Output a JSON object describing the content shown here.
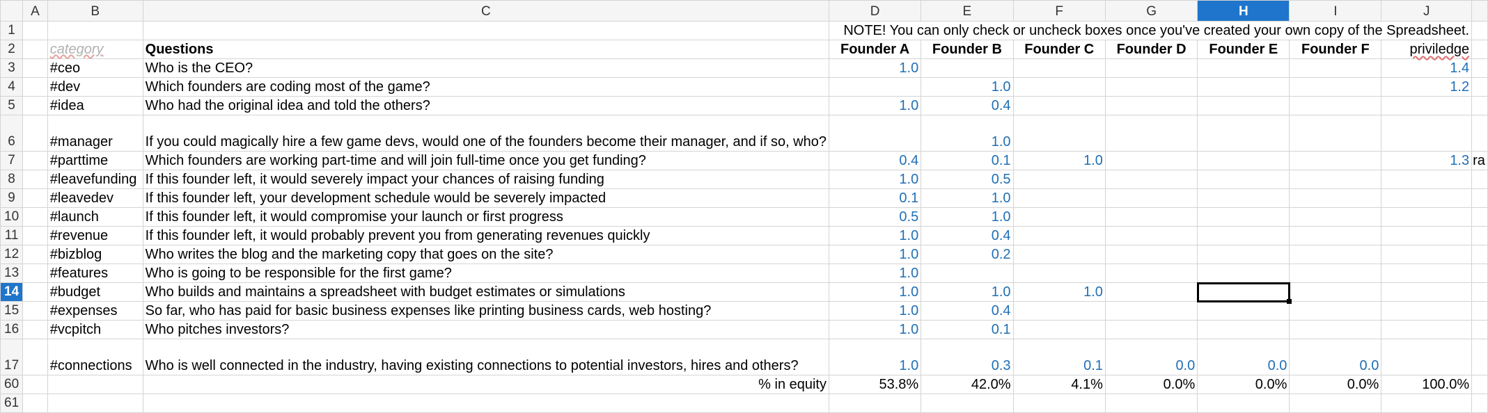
{
  "columns": [
    "",
    "A",
    "B",
    "C",
    "D",
    "E",
    "F",
    "G",
    "H",
    "I",
    "J",
    ""
  ],
  "selected_column": "H",
  "selected_row": "14",
  "note": "NOTE! You can only check or uncheck boxes once you've created your own copy of the Spreadsheet.",
  "header": {
    "category": "category",
    "questions": "Questions",
    "founders": [
      "Founder A",
      "Founder B",
      "Founder C",
      "Founder D",
      "Founder E",
      "Founder F"
    ],
    "priviledge": "priviledge"
  },
  "rows": [
    {
      "n": "3",
      "tag": "#ceo",
      "q": "Who is the CEO?",
      "v": [
        "1.0",
        "",
        "",
        "",
        "",
        ""
      ],
      "j": "1.4"
    },
    {
      "n": "4",
      "tag": "#dev",
      "q": "Which founders are coding most of the game?",
      "v": [
        "",
        "1.0",
        "",
        "",
        "",
        ""
      ],
      "j": "1.2"
    },
    {
      "n": "5",
      "tag": "#idea",
      "q": "Who had the original idea and told the others?",
      "v": [
        "1.0",
        "0.4",
        "",
        "",
        "",
        ""
      ],
      "j": ""
    },
    {
      "n": "6",
      "tag": "#manager",
      "q": "If you could magically hire a few game devs, would one of the founders become their manager, and if so, who?",
      "v": [
        "",
        "1.0",
        "",
        "",
        "",
        ""
      ],
      "j": ""
    },
    {
      "n": "7",
      "tag": "#parttime",
      "q": "Which founders are working part-time and will join full-time once you get funding?",
      "v": [
        "0.4",
        "0.1",
        "1.0",
        "",
        "",
        ""
      ],
      "j": "1.3"
    },
    {
      "n": "8",
      "tag": "#leavefunding",
      "q": "If this founder left, it would severely impact your chances of raising funding",
      "v": [
        "1.0",
        "0.5",
        "",
        "",
        "",
        ""
      ],
      "j": ""
    },
    {
      "n": "9",
      "tag": "#leavedev",
      "q": "If this founder left, your development schedule would be severely impacted",
      "v": [
        "0.1",
        "1.0",
        "",
        "",
        "",
        ""
      ],
      "j": ""
    },
    {
      "n": "10",
      "tag": "#launch",
      "q": "If this founder left, it would compromise your launch or first progress",
      "v": [
        "0.5",
        "1.0",
        "",
        "",
        "",
        ""
      ],
      "j": ""
    },
    {
      "n": "11",
      "tag": "#revenue",
      "q": "If this founder left, it would probably prevent you from generating revenues quickly",
      "v": [
        "1.0",
        "0.4",
        "",
        "",
        "",
        ""
      ],
      "j": ""
    },
    {
      "n": "12",
      "tag": "#bizblog",
      "q": "Who writes the blog and the marketing copy that goes on the site?",
      "v": [
        "1.0",
        "0.2",
        "",
        "",
        "",
        ""
      ],
      "j": ""
    },
    {
      "n": "13",
      "tag": "#features",
      "q": "Who is going to be responsible for the first game?",
      "v": [
        "1.0",
        "",
        "",
        "",
        "",
        ""
      ],
      "j": ""
    },
    {
      "n": "14",
      "tag": "#budget",
      "q": "Who builds and maintains a spreadsheet with budget estimates or simulations",
      "v": [
        "1.0",
        "1.0",
        "1.0",
        "",
        "",
        ""
      ],
      "j": ""
    },
    {
      "n": "15",
      "tag": "#expenses",
      "q": "So far, who has paid for basic business expenses like printing business cards, web hosting?",
      "v": [
        "1.0",
        "0.4",
        "",
        "",
        "",
        ""
      ],
      "j": ""
    },
    {
      "n": "16",
      "tag": "#vcpitch",
      "q": "Who pitches investors?",
      "v": [
        "1.0",
        "0.1",
        "",
        "",
        "",
        ""
      ],
      "j": ""
    },
    {
      "n": "17",
      "tag": "#connections",
      "q": "Who is well connected in the industry, having existing connections to potential investors, hires and others?",
      "v": [
        "1.0",
        "0.3",
        "0.1",
        "0.0",
        "0.0",
        "0.0"
      ],
      "j": ""
    }
  ],
  "row7_overflow": "ra",
  "equity": {
    "row": "60",
    "label": "% in equity",
    "values": [
      "53.8%",
      "42.0%",
      "4.1%",
      "0.0%",
      "0.0%",
      "0.0%"
    ],
    "total": "100.0%"
  },
  "rownums": {
    "r1": "1",
    "r2": "2",
    "r61": "61"
  }
}
